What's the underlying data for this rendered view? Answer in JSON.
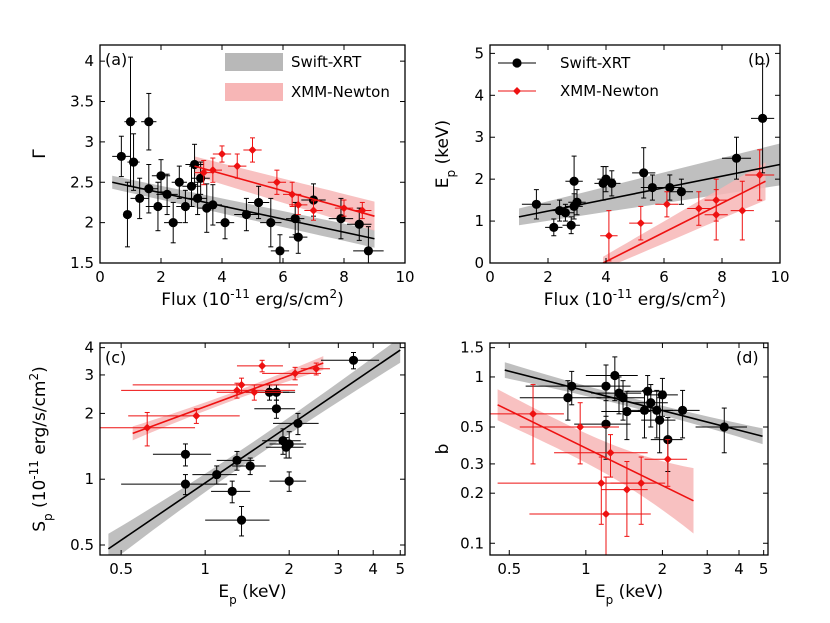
{
  "colors": {
    "black": "#000000",
    "red": "#ee1111",
    "grey_band": "#b8b8b8",
    "red_band": "#f7b6b6"
  },
  "chart_data": [
    {
      "type": "scatter",
      "panel_label": "(a)",
      "xlabel": "Flux (10",
      "xlabel_sup": "-11",
      "xlabel_tail": " erg/s/cm",
      "xlabel_sup2": "2",
      "xlabel_close": ")",
      "ylabel": "Γ",
      "xlim": [
        0,
        10
      ],
      "ylim": [
        1.5,
        4.2
      ],
      "xscale": "linear",
      "yscale": "linear",
      "xticks": [
        0,
        2,
        4,
        6,
        8,
        10
      ],
      "xtick_labels": [
        "0",
        "2",
        "4",
        "6",
        "8",
        "10"
      ],
      "yticks": [
        1.5,
        2,
        2.5,
        3,
        3.5,
        4
      ],
      "ytick_labels": [
        "1.5",
        "2",
        "2.5",
        "3",
        "3.5",
        "4"
      ],
      "legend": [
        "Swift-XRT",
        "XMM-Newton"
      ],
      "legend_style": "bands",
      "series": [
        {
          "name": "Swift-XRT",
          "color": "black",
          "marker": "circle",
          "points": [
            [
              0.7,
              2.82,
              0.3,
              0.25
            ],
            [
              0.9,
              2.1,
              0.1,
              0.4
            ],
            [
              1.0,
              3.25,
              0.2,
              0.8
            ],
            [
              1.1,
              2.75,
              0.2,
              0.35
            ],
            [
              1.3,
              2.3,
              0.3,
              0.25
            ],
            [
              1.6,
              3.25,
              0.25,
              0.35
            ],
            [
              1.6,
              2.42,
              0.3,
              0.3
            ],
            [
              1.9,
              2.2,
              0.4,
              0.3
            ],
            [
              2.0,
              2.58,
              0.3,
              0.2
            ],
            [
              2.2,
              2.35,
              0.35,
              0.25
            ],
            [
              2.4,
              2.0,
              0.3,
              0.25
            ],
            [
              2.6,
              2.5,
              0.25,
              0.2
            ],
            [
              2.8,
              2.2,
              0.3,
              0.2
            ],
            [
              3.0,
              2.45,
              0.3,
              0.25
            ],
            [
              3.1,
              2.72,
              0.3,
              0.25
            ],
            [
              3.2,
              2.3,
              0.3,
              0.2
            ],
            [
              3.3,
              2.55,
              0.3,
              0.2
            ],
            [
              3.5,
              2.18,
              0.3,
              0.3
            ],
            [
              3.7,
              2.22,
              0.3,
              0.25
            ],
            [
              4.1,
              2.0,
              0.3,
              0.2
            ],
            [
              4.8,
              2.1,
              0.4,
              0.2
            ],
            [
              5.2,
              2.25,
              0.35,
              0.2
            ],
            [
              5.6,
              2.0,
              0.35,
              0.3
            ],
            [
              5.9,
              1.65,
              0.3,
              0.2
            ],
            [
              6.4,
              2.05,
              0.3,
              0.2
            ],
            [
              6.5,
              1.82,
              0.3,
              0.2
            ],
            [
              7.0,
              2.28,
              0.4,
              0.2
            ],
            [
              7.9,
              2.05,
              0.4,
              0.25
            ],
            [
              8.5,
              1.98,
              0.4,
              0.2
            ],
            [
              8.8,
              1.65,
              0.5,
              0.3
            ]
          ]
        },
        {
          "name": "XMM-Newton",
          "color": "red",
          "marker": "diamond",
          "points": [
            [
              3.4,
              2.62,
              0.3,
              0.15
            ],
            [
              3.7,
              2.65,
              0.3,
              0.15
            ],
            [
              4.0,
              2.85,
              0.3,
              0.1
            ],
            [
              4.5,
              2.7,
              0.3,
              0.15
            ],
            [
              5.0,
              2.9,
              0.3,
              0.15
            ],
            [
              5.8,
              2.5,
              0.3,
              0.15
            ],
            [
              6.3,
              2.35,
              0.3,
              0.15
            ],
            [
              6.5,
              2.22,
              0.3,
              0.12
            ],
            [
              7.0,
              2.15,
              0.3,
              0.12
            ],
            [
              8.0,
              2.18,
              0.3,
              0.1
            ],
            [
              8.6,
              2.15,
              0.3,
              0.1
            ]
          ]
        }
      ],
      "fits": [
        {
          "name": "Swift-XRT",
          "color": "black",
          "x": [
            0.4,
            9.0
          ],
          "y": [
            2.5,
            1.8
          ],
          "band_halfwidth": [
            0.08,
            0.11
          ]
        },
        {
          "name": "XMM-Newton",
          "color": "red",
          "x": [
            3.1,
            9.0
          ],
          "y": [
            2.7,
            2.08
          ],
          "band_halfwidth": [
            0.12,
            0.18
          ]
        }
      ]
    },
    {
      "type": "scatter",
      "panel_label": "(b)",
      "xlabel": "Flux (10",
      "xlabel_sup": "-11",
      "xlabel_tail": " erg/s/cm",
      "xlabel_sup2": "2",
      "xlabel_close": ")",
      "ylabel": "E",
      "ylabel_sub": "p",
      "ylabel_tail": " (keV)",
      "xlim": [
        0,
        10
      ],
      "ylim": [
        0,
        5.2
      ],
      "xscale": "linear",
      "yscale": "linear",
      "xticks": [
        0,
        2,
        4,
        6,
        8,
        10
      ],
      "xtick_labels": [
        "0",
        "2",
        "4",
        "6",
        "8",
        "10"
      ],
      "yticks": [
        0,
        1,
        2,
        3,
        4,
        5
      ],
      "ytick_labels": [
        "0",
        "1",
        "2",
        "3",
        "4",
        "5"
      ],
      "legend": [
        "Swift-XRT",
        "XMM-Newton"
      ],
      "legend_style": "markers",
      "series": [
        {
          "name": "Swift-XRT",
          "color": "black",
          "marker": "circle",
          "points": [
            [
              1.6,
              1.4,
              0.5,
              0.35
            ],
            [
              2.2,
              0.85,
              0.3,
              0.2
            ],
            [
              2.4,
              1.25,
              0.3,
              0.25
            ],
            [
              2.6,
              1.2,
              0.3,
              0.2
            ],
            [
              2.8,
              0.9,
              0.3,
              0.2
            ],
            [
              2.9,
              1.35,
              0.3,
              0.3
            ],
            [
              3.0,
              1.45,
              0.3,
              0.3
            ],
            [
              2.9,
              1.95,
              0.3,
              0.6
            ],
            [
              3.9,
              1.9,
              0.3,
              0.4
            ],
            [
              4.0,
              2.0,
              0.3,
              0.3
            ],
            [
              4.2,
              1.9,
              0.3,
              0.3
            ],
            [
              5.3,
              2.15,
              0.4,
              0.6
            ],
            [
              5.6,
              1.8,
              0.4,
              0.3
            ],
            [
              6.2,
              1.8,
              0.4,
              0.3
            ],
            [
              6.6,
              1.7,
              0.4,
              0.3
            ],
            [
              8.5,
              2.5,
              0.5,
              0.5
            ],
            [
              9.4,
              3.45,
              0.4,
              1.3
            ]
          ]
        },
        {
          "name": "XMM-Newton",
          "color": "red",
          "marker": "diamond",
          "points": [
            [
              4.1,
              0.65,
              0.3,
              0.6
            ],
            [
              5.2,
              0.95,
              0.4,
              0.4
            ],
            [
              6.1,
              1.4,
              0.4,
              0.3
            ],
            [
              7.2,
              1.3,
              0.4,
              0.4
            ],
            [
              7.8,
              1.5,
              0.4,
              0.5
            ],
            [
              7.8,
              1.15,
              0.4,
              0.6
            ],
            [
              8.7,
              1.25,
              0.4,
              0.7
            ],
            [
              9.3,
              2.1,
              0.5,
              0.6
            ]
          ]
        }
      ],
      "fits": [
        {
          "name": "Swift-XRT",
          "color": "black",
          "x": [
            1.0,
            10.0
          ],
          "y": [
            1.1,
            2.35
          ],
          "band_halfwidth": [
            0.2,
            0.5
          ]
        },
        {
          "name": "XMM-Newton",
          "color": "red",
          "x": [
            3.9,
            9.5
          ],
          "y": [
            0.0,
            1.95
          ],
          "band_halfwidth": [
            0.15,
            0.45
          ]
        }
      ]
    },
    {
      "type": "scatter",
      "panel_label": "(c)",
      "xlabel": "E",
      "xlabel_sub": "p",
      "xlabel_tail": " (keV)",
      "ylabel": "S",
      "ylabel_sub": "p",
      "ylabel_tail": " (10",
      "ylabel_sup": "-11",
      "ylabel_tail2": " erg/s/cm",
      "ylabel_sup2": "2",
      "ylabel_close": ")",
      "xlim": [
        0.42,
        5.2
      ],
      "ylim": [
        0.45,
        4.2
      ],
      "xscale": "log",
      "yscale": "log",
      "xticks": [
        0.5,
        1,
        2,
        3,
        4,
        5
      ],
      "xtick_labels": [
        "0.5",
        "1",
        "2",
        "3",
        "4",
        "5"
      ],
      "yticks": [
        0.5,
        1,
        2,
        3,
        4
      ],
      "ytick_labels": [
        "0.5",
        "1",
        "2",
        "3",
        "4"
      ],
      "legend": [],
      "series": [
        {
          "name": "Swift-XRT",
          "color": "black",
          "marker": "circle",
          "points": [
            [
              0.85,
              0.95,
              0.35,
              0.1
            ],
            [
              0.85,
              1.3,
              0.2,
              0.15
            ],
            [
              1.1,
              1.05,
              0.2,
              0.1
            ],
            [
              1.25,
              0.88,
              0.2,
              0.1
            ],
            [
              1.3,
              1.22,
              0.2,
              0.12
            ],
            [
              1.35,
              0.65,
              0.35,
              0.1
            ],
            [
              1.45,
              1.15,
              0.2,
              0.1
            ],
            [
              1.7,
              2.5,
              0.3,
              0.2
            ],
            [
              1.8,
              2.1,
              0.3,
              0.2
            ],
            [
              1.8,
              2.5,
              0.3,
              0.2
            ],
            [
              1.9,
              1.5,
              0.3,
              0.2
            ],
            [
              1.95,
              1.4,
              0.3,
              0.15
            ],
            [
              2.0,
              0.98,
              0.3,
              0.1
            ],
            [
              2.0,
              1.45,
              0.3,
              0.2
            ],
            [
              2.15,
              1.8,
              0.4,
              0.2
            ],
            [
              3.4,
              3.5,
              0.8,
              0.3
            ]
          ]
        },
        {
          "name": "XMM-Newton",
          "color": "red",
          "marker": "diamond",
          "points": [
            [
              0.62,
              1.72,
              0.3,
              0.3
            ],
            [
              0.93,
              1.95,
              0.4,
              0.15
            ],
            [
              1.3,
              2.55,
              0.8,
              0.2
            ],
            [
              1.35,
              2.7,
              0.8,
              0.2
            ],
            [
              1.5,
              2.5,
              0.4,
              0.2
            ],
            [
              1.6,
              3.3,
              0.3,
              0.2
            ],
            [
              2.1,
              3.05,
              0.5,
              0.2
            ],
            [
              2.5,
              3.2,
              0.3,
              0.2
            ]
          ]
        }
      ],
      "fits": [
        {
          "name": "Swift-XRT",
          "color": "black",
          "x": [
            0.45,
            5.0
          ],
          "y": [
            0.48,
            3.9
          ],
          "band_halfwidth_factor": [
            1.18,
            1.15
          ]
        },
        {
          "name": "XMM-Newton",
          "color": "red",
          "x": [
            0.55,
            2.65
          ],
          "y": [
            1.62,
            3.4
          ],
          "band_halfwidth_factor": [
            1.08,
            1.08
          ]
        }
      ]
    },
    {
      "type": "scatter",
      "panel_label": "(d)",
      "xlabel": "E",
      "xlabel_sub": "p",
      "xlabel_tail": " (keV)",
      "ylabel": "b",
      "xlim": [
        0.42,
        5.2
      ],
      "ylim": [
        0.085,
        1.6
      ],
      "xscale": "log",
      "yscale": "log",
      "xticks": [
        0.5,
        1,
        2,
        3,
        4,
        5
      ],
      "xtick_labels": [
        "0.5",
        "1",
        "2",
        "3",
        "4",
        "5"
      ],
      "yticks": [
        0.1,
        0.2,
        0.3,
        0.5,
        1,
        1.5
      ],
      "ytick_labels": [
        "0.1",
        "0.2",
        "0.3",
        "0.5",
        "1",
        "1.5"
      ],
      "legend": [],
      "series": [
        {
          "name": "Swift-XRT",
          "color": "black",
          "marker": "circle",
          "points": [
            [
              0.85,
              0.75,
              0.3,
              0.2
            ],
            [
              0.88,
              0.88,
              0.3,
              0.2
            ],
            [
              1.2,
              0.88,
              0.3,
              0.3
            ],
            [
              1.2,
              0.52,
              0.3,
              0.2
            ],
            [
              1.3,
              1.02,
              0.3,
              0.3
            ],
            [
              1.35,
              0.8,
              0.3,
              0.2
            ],
            [
              1.4,
              0.75,
              0.3,
              0.2
            ],
            [
              1.45,
              0.62,
              0.3,
              0.2
            ],
            [
              1.7,
              0.63,
              0.3,
              0.2
            ],
            [
              1.75,
              0.82,
              0.3,
              0.2
            ],
            [
              1.8,
              0.7,
              0.3,
              0.2
            ],
            [
              1.9,
              0.63,
              0.3,
              0.2
            ],
            [
              1.95,
              0.55,
              0.3,
              0.2
            ],
            [
              2.0,
              0.78,
              0.3,
              0.2
            ],
            [
              2.1,
              0.42,
              0.3,
              0.15
            ],
            [
              2.4,
              0.63,
              0.4,
              0.2
            ],
            [
              3.5,
              0.5,
              0.8,
              0.15
            ]
          ]
        },
        {
          "name": "XMM-Newton",
          "color": "red",
          "marker": "diamond",
          "points": [
            [
              0.62,
              0.6,
              0.2,
              0.3
            ],
            [
              0.95,
              0.5,
              0.4,
              0.2
            ],
            [
              1.15,
              0.23,
              0.7,
              0.1
            ],
            [
              1.2,
              0.15,
              0.6,
              0.1
            ],
            [
              1.25,
              0.35,
              0.5,
              0.1
            ],
            [
              1.45,
              0.21,
              0.3,
              0.1
            ],
            [
              1.65,
              0.23,
              0.4,
              0.1
            ],
            [
              2.1,
              0.32,
              0.4,
              0.1
            ]
          ]
        }
      ],
      "fits": [
        {
          "name": "Swift-XRT",
          "color": "black",
          "x": [
            0.48,
            4.95
          ],
          "y": [
            1.1,
            0.44
          ],
          "band_halfwidth_factor": [
            1.12,
            1.12
          ]
        },
        {
          "name": "XMM-Newton",
          "color": "red",
          "x": [
            0.45,
            2.65
          ],
          "y": [
            0.68,
            0.18
          ],
          "band_halfwidth_factor": [
            1.25,
            1.6
          ]
        }
      ]
    }
  ]
}
